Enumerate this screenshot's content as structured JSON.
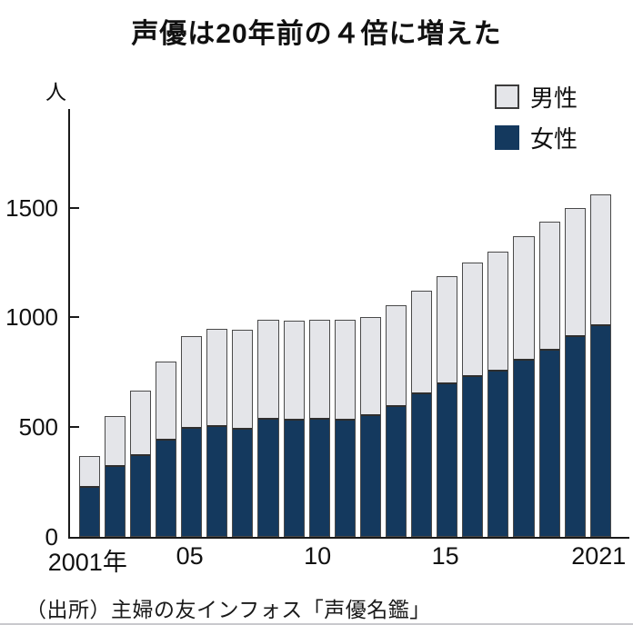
{
  "title": "声優は20年前の４倍に増えた",
  "unit_label": "人",
  "source": "（出所）主婦の友インフォス「声優名鑑」",
  "legend": [
    {
      "name": "male",
      "label": "男性",
      "color": "#e4e5e9"
    },
    {
      "name": "female",
      "label": "女性",
      "color": "#14395e"
    }
  ],
  "colors": {
    "male_fill": "#e4e5e9",
    "female_fill": "#14395e",
    "bar_border": "#4a4a4a",
    "axis": "#1a1a1a"
  },
  "chart_data": {
    "type": "bar",
    "stacked": true,
    "title": "声優は20年前の４倍に増えた",
    "ylabel": "人",
    "ylim": [
      0,
      1950
    ],
    "grid": false,
    "legend_position": "top-right",
    "categories": [
      "2001",
      "2002",
      "2003",
      "2004",
      "2005",
      "2006",
      "2007",
      "2008",
      "2009",
      "2010",
      "2011",
      "2012",
      "2013",
      "2014",
      "2015",
      "2016",
      "2017",
      "2018",
      "2019",
      "2020",
      "2021"
    ],
    "series": [
      {
        "name": "女性",
        "values": [
          220,
          315,
          365,
          435,
          490,
          495,
          485,
          530,
          525,
          530,
          525,
          545,
          590,
          645,
          690,
          725,
          750,
          800,
          845,
          905,
          955
        ]
      },
      {
        "name": "男性",
        "values": [
          150,
          235,
          300,
          365,
          425,
          455,
          460,
          460,
          460,
          460,
          465,
          455,
          465,
          475,
          500,
          525,
          550,
          570,
          590,
          595,
          605
        ]
      }
    ],
    "totals": [
      370,
      550,
      665,
      800,
      915,
      950,
      945,
      990,
      985,
      990,
      990,
      1000,
      1055,
      1120,
      1190,
      1250,
      1300,
      1370,
      1435,
      1500,
      1560
    ],
    "y_ticks": [
      0,
      500,
      1000,
      1500
    ],
    "x_ticks": [
      {
        "index": 0,
        "label": "2001年"
      },
      {
        "index": 4,
        "label": "05"
      },
      {
        "index": 9,
        "label": "10"
      },
      {
        "index": 14,
        "label": "15"
      },
      {
        "index": 20,
        "label": "2021"
      }
    ]
  }
}
